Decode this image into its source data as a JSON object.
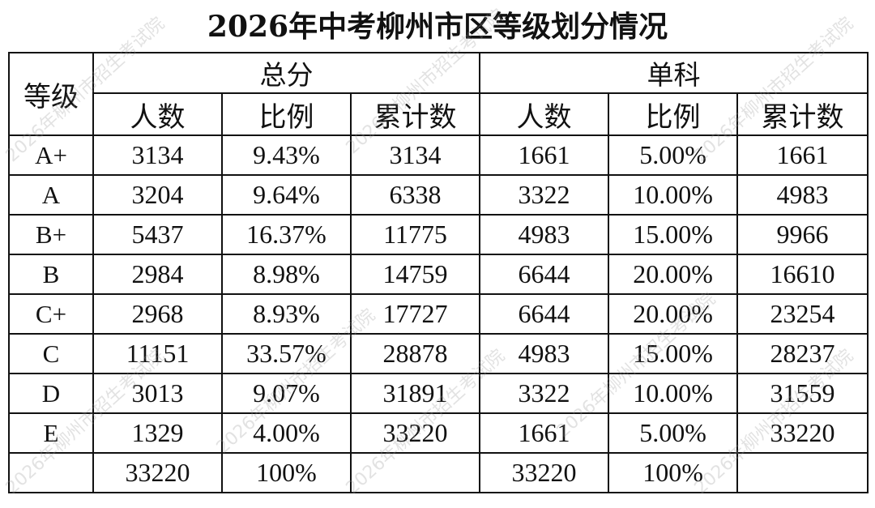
{
  "title": "2026年中考柳州市区等级划分情况",
  "headers": {
    "grade": "等级",
    "total_group": "总分",
    "single_group": "单科",
    "count": "人数",
    "ratio": "比例",
    "cumulative": "累计数"
  },
  "rows": [
    {
      "grade": "A+",
      "total_count": "3134",
      "total_ratio": "9.43%",
      "total_cum": "3134",
      "single_count": "1661",
      "single_ratio": "5.00%",
      "single_cum": "1661"
    },
    {
      "grade": "A",
      "total_count": "3204",
      "total_ratio": "9.64%",
      "total_cum": "6338",
      "single_count": "3322",
      "single_ratio": "10.00%",
      "single_cum": "4983"
    },
    {
      "grade": "B+",
      "total_count": "5437",
      "total_ratio": "16.37%",
      "total_cum": "11775",
      "single_count": "4983",
      "single_ratio": "15.00%",
      "single_cum": "9966"
    },
    {
      "grade": "B",
      "total_count": "2984",
      "total_ratio": "8.98%",
      "total_cum": "14759",
      "single_count": "6644",
      "single_ratio": "20.00%",
      "single_cum": "16610"
    },
    {
      "grade": "C+",
      "total_count": "2968",
      "total_ratio": "8.93%",
      "total_cum": "17727",
      "single_count": "6644",
      "single_ratio": "20.00%",
      "single_cum": "23254"
    },
    {
      "grade": "C",
      "total_count": "11151",
      "total_ratio": "33.57%",
      "total_cum": "28878",
      "single_count": "4983",
      "single_ratio": "15.00%",
      "single_cum": "28237"
    },
    {
      "grade": "D",
      "total_count": "3013",
      "total_ratio": "9.07%",
      "total_cum": "31891",
      "single_count": "3322",
      "single_ratio": "10.00%",
      "single_cum": "31559"
    },
    {
      "grade": "E",
      "total_count": "1329",
      "total_ratio": "4.00%",
      "total_cum": "33220",
      "single_count": "1661",
      "single_ratio": "5.00%",
      "single_cum": "33220"
    },
    {
      "grade": "",
      "total_count": "33220",
      "total_ratio": "100%",
      "total_cum": "",
      "single_count": "33220",
      "single_ratio": "100%",
      "single_cum": ""
    }
  ],
  "watermark": "2026年柳州市招生考试院"
}
